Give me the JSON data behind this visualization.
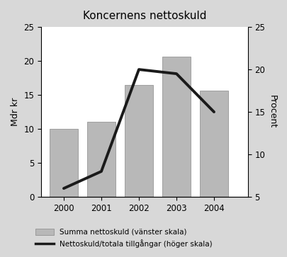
{
  "title": "Koncernens nettoskuld",
  "years": [
    2000,
    2001,
    2002,
    2003,
    2004
  ],
  "bar_values": [
    10.0,
    11.1,
    16.5,
    20.6,
    15.6
  ],
  "line_values": [
    6.0,
    8.0,
    20.0,
    19.5,
    15.0
  ],
  "bar_color": "#b8b8b8",
  "line_color": "#1a1a1a",
  "left_ylabel": "Mdr kr",
  "right_ylabel": "Procent",
  "left_ylim": [
    0,
    25
  ],
  "right_ylim": [
    5,
    25
  ],
  "left_yticks": [
    0,
    5,
    10,
    15,
    20,
    25
  ],
  "right_yticks": [
    5,
    10,
    15,
    20,
    25
  ],
  "legend_bar_label": "Summa nettoskuld (vänster skala)",
  "legend_line_label": "Nettoskuld/totala tillgångar (höger skala)",
  "outer_bg": "#d8d8d8",
  "inner_bg": "#ffffff",
  "bar_width": 0.75,
  "line_width": 2.8
}
